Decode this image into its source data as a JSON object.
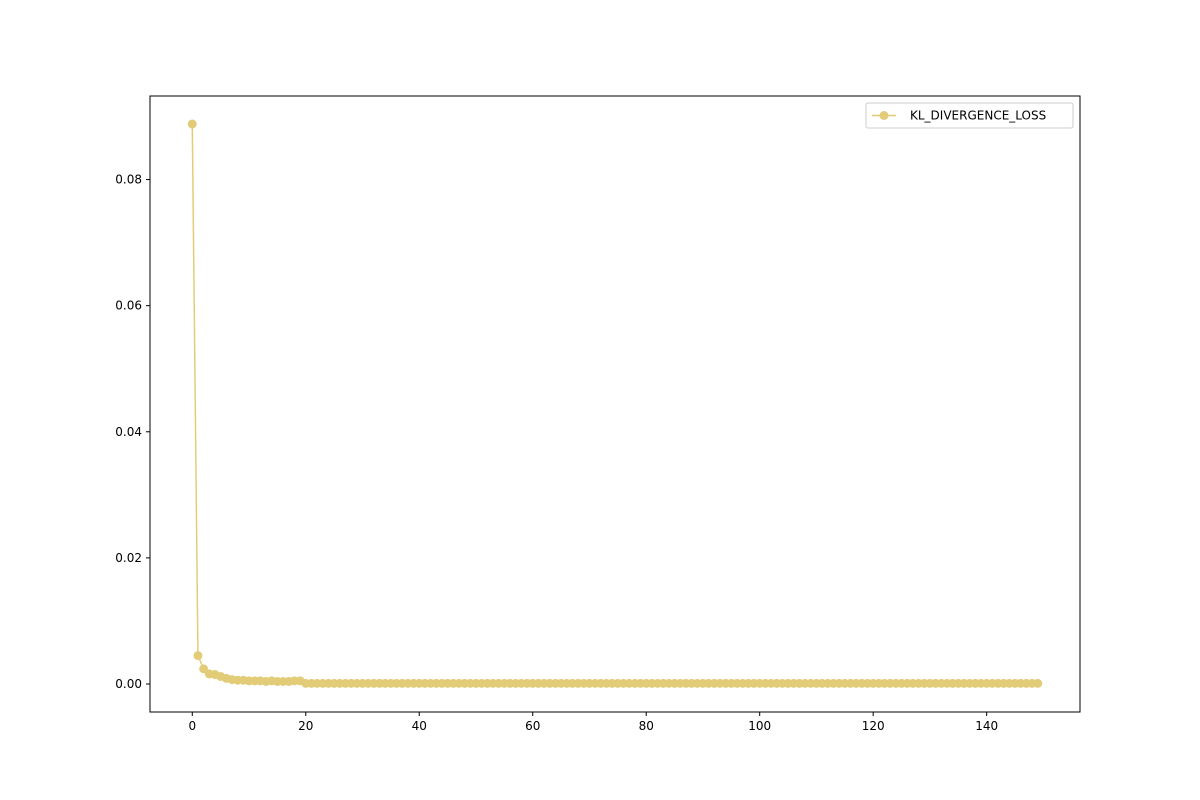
{
  "chart_data": {
    "type": "line",
    "title": "",
    "xlabel": "",
    "ylabel": "",
    "xlim": [
      -7.45,
      156.45
    ],
    "ylim": [
      -0.00444,
      0.09325
    ],
    "xticks": [
      0,
      20,
      40,
      60,
      80,
      100,
      120,
      140
    ],
    "yticks": [
      0.0,
      0.02,
      0.04,
      0.06,
      0.08
    ],
    "ytick_labels": [
      "0.00",
      "0.02",
      "0.04",
      "0.06",
      "0.08"
    ],
    "grid": false,
    "legend_position": "top-right",
    "series": [
      {
        "name": "KL_DIVERGENCE_LOSS",
        "color": "#e3cc78",
        "marker": "circle",
        "head_x": [
          0,
          1,
          2,
          3,
          4,
          5,
          6,
          7,
          8,
          9,
          10,
          11,
          12,
          13,
          14,
          15,
          16,
          17,
          18,
          19
        ],
        "head_y": [
          0.0888,
          0.0045,
          0.0024,
          0.0016,
          0.0015,
          0.0012,
          0.0009,
          0.0007,
          0.0006,
          0.0006,
          0.0005,
          0.0005,
          0.0005,
          0.0004,
          0.0005,
          0.0004,
          0.0004,
          0.0004,
          0.0005,
          0.0005
        ],
        "tail_x_start": 20,
        "tail_x_end": 149,
        "tail_y": 0.0001
      }
    ]
  }
}
